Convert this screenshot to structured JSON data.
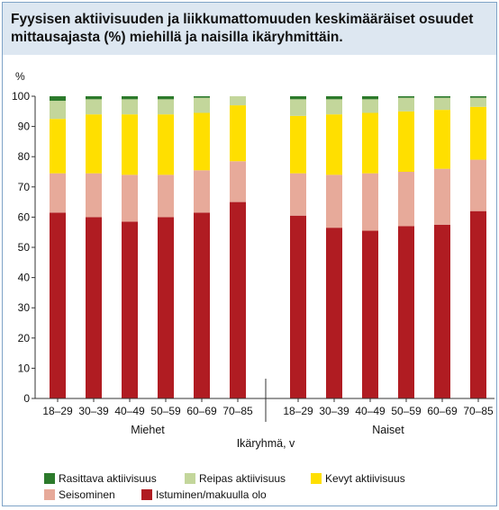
{
  "title": "Fyysisen aktiivisuuden ja liikkumattomuuden keskimääräiset osuudet mittausajasta (%) miehillä ja naisilla ikäryhmittäin.",
  "chart_data": {
    "type": "bar",
    "stacked": true,
    "title": "Fyysisen aktiivisuuden ja liikkumattomuuden keskimääräiset osuudet mittausajasta (%) miehillä ja naisilla ikäryhmittäin.",
    "ylabel": "%",
    "xlabel": "Ikäryhmä, v",
    "ylim": [
      0,
      100
    ],
    "yticks": [
      0,
      10,
      20,
      30,
      40,
      50,
      60,
      70,
      80,
      90,
      100
    ],
    "grid": false,
    "legend_position": "bottom",
    "groups": [
      {
        "name": "Miehet",
        "categories": [
          "18–29",
          "30–39",
          "40–49",
          "50–59",
          "60–69",
          "70–85"
        ]
      },
      {
        "name": "Naiset",
        "categories": [
          "18–29",
          "30–39",
          "40–49",
          "50–59",
          "60–69",
          "70–85"
        ]
      }
    ],
    "series": [
      {
        "name": "Istuminen/makuulla olo",
        "color": "#b01c22",
        "values": [
          61.5,
          60,
          58.5,
          60,
          61.5,
          65,
          60.5,
          56.5,
          55.5,
          57,
          57.5,
          62
        ]
      },
      {
        "name": "Seisominen",
        "color": "#e7aa9a",
        "values": [
          13,
          14.5,
          15.5,
          14,
          14,
          13.5,
          14,
          17.5,
          19,
          18,
          18.5,
          17
        ]
      },
      {
        "name": "Kevyt aktiivisuus",
        "color": "#ffdf00",
        "values": [
          18,
          19.5,
          20,
          20,
          19,
          18.5,
          19,
          20,
          20,
          20,
          19.5,
          17.5
        ]
      },
      {
        "name": "Reipas aktiivisuus",
        "color": "#c3d69b",
        "values": [
          6,
          5,
          5,
          5,
          5,
          3,
          5.5,
          5,
          4.5,
          4.5,
          4,
          3
        ]
      },
      {
        "name": "Rasittava aktiivisuus",
        "color": "#2c7a2b",
        "values": [
          1.5,
          1,
          1,
          1,
          0.5,
          0,
          1,
          1,
          1,
          0.5,
          0.5,
          0.5
        ]
      }
    ],
    "legend_order": [
      "Rasittava aktiivisuus",
      "Reipas aktiivisuus",
      "Kevyt aktiivisuus",
      "Seisominen",
      "Istuminen/makuulla olo"
    ]
  },
  "legend": [
    {
      "label": "Rasittava aktiivisuus",
      "color": "#2c7a2b"
    },
    {
      "label": "Reipas aktiivisuus",
      "color": "#c3d69b"
    },
    {
      "label": "Kevyt aktiivisuus",
      "color": "#ffdf00"
    },
    {
      "label": "Seisominen",
      "color": "#e7aa9a"
    },
    {
      "label": "Istuminen/makuulla olo",
      "color": "#b01c22"
    }
  ]
}
